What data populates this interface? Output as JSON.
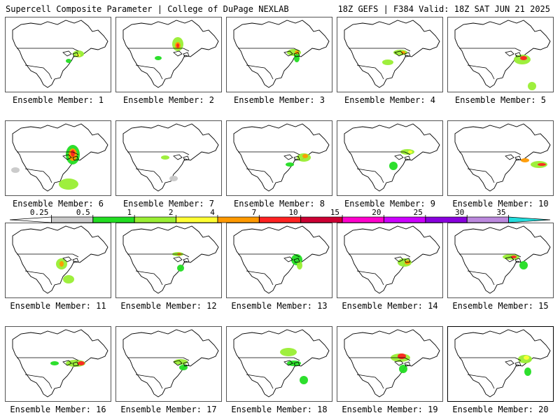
{
  "header": {
    "left": "Supercell Composite Parameter | College of DuPage NEXLAB",
    "right": "18Z GEFS | F384 Valid: 18Z SAT JUN 21 2025"
  },
  "colorbar": {
    "ticks": [
      "0.25",
      "0.5",
      "1",
      "2",
      "4",
      "7",
      "10",
      "15",
      "20",
      "25",
      "30",
      "35"
    ],
    "colors": [
      "#ffffff",
      "#c8c8c8",
      "#22dd22",
      "#99ee33",
      "#ffff33",
      "#ff9900",
      "#ff2222",
      "#cc0033",
      "#ff00cc",
      "#cc00ff",
      "#8800dd",
      "#bb88dd",
      "#22dddd"
    ]
  },
  "members": [
    {
      "label": "Ensemble Member: 1"
    },
    {
      "label": "Ensemble Member: 2"
    },
    {
      "label": "Ensemble Member: 3"
    },
    {
      "label": "Ensemble Member: 4"
    },
    {
      "label": "Ensemble Member: 5"
    },
    {
      "label": "Ensemble Member: 6"
    },
    {
      "label": "Ensemble Member: 7"
    },
    {
      "label": "Ensemble Member: 8"
    },
    {
      "label": "Ensemble Member: 9"
    },
    {
      "label": "Ensemble Member: 10"
    },
    {
      "label": "Ensemble Member: 11"
    },
    {
      "label": "Ensemble Member: 12"
    },
    {
      "label": "Ensemble Member: 13"
    },
    {
      "label": "Ensemble Member: 14"
    },
    {
      "label": "Ensemble Member: 15"
    },
    {
      "label": "Ensemble Member: 16"
    },
    {
      "label": "Ensemble Member: 17"
    },
    {
      "label": "Ensemble Member: 18"
    },
    {
      "label": "Ensemble Member: 19"
    },
    {
      "label": "Ensemble Member: 20"
    }
  ],
  "selected_member": 20
}
